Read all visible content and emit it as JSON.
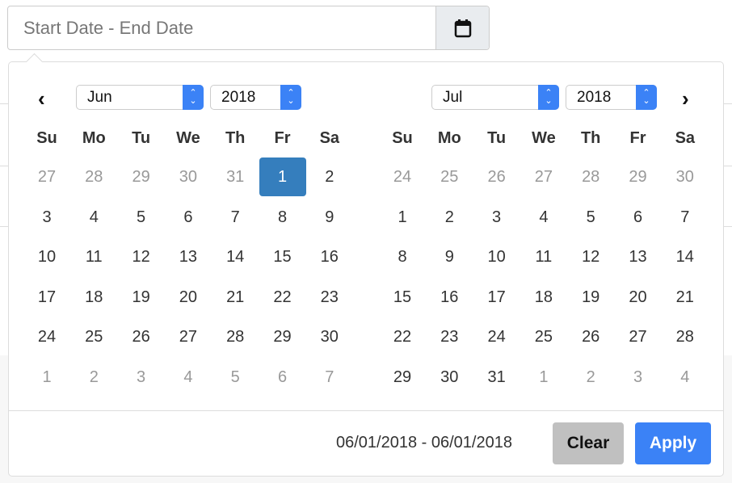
{
  "input": {
    "placeholder": "Start Date - End Date",
    "icon": "calendar-icon"
  },
  "weekdays": [
    "Su",
    "Mo",
    "Tu",
    "We",
    "Th",
    "Fr",
    "Sa"
  ],
  "left": {
    "month": "Jun",
    "year": "2018",
    "days": [
      [
        "27",
        "28",
        "29",
        "30",
        "31",
        "1",
        "2"
      ],
      [
        "3",
        "4",
        "5",
        "6",
        "7",
        "8",
        "9"
      ],
      [
        "10",
        "11",
        "12",
        "13",
        "14",
        "15",
        "16"
      ],
      [
        "17",
        "18",
        "19",
        "20",
        "21",
        "22",
        "23"
      ],
      [
        "24",
        "25",
        "26",
        "27",
        "28",
        "29",
        "30"
      ],
      [
        "1",
        "2",
        "3",
        "4",
        "5",
        "6",
        "7"
      ]
    ],
    "off": [
      [
        1,
        1,
        1,
        1,
        1,
        0,
        0
      ],
      [
        0,
        0,
        0,
        0,
        0,
        0,
        0
      ],
      [
        0,
        0,
        0,
        0,
        0,
        0,
        0
      ],
      [
        0,
        0,
        0,
        0,
        0,
        0,
        0
      ],
      [
        0,
        0,
        0,
        0,
        0,
        0,
        0
      ],
      [
        1,
        1,
        1,
        1,
        1,
        1,
        1
      ]
    ],
    "selected": "1"
  },
  "right": {
    "month": "Jul",
    "year": "2018",
    "days": [
      [
        "24",
        "25",
        "26",
        "27",
        "28",
        "29",
        "30"
      ],
      [
        "1",
        "2",
        "3",
        "4",
        "5",
        "6",
        "7"
      ],
      [
        "8",
        "9",
        "10",
        "11",
        "12",
        "13",
        "14"
      ],
      [
        "15",
        "16",
        "17",
        "18",
        "19",
        "20",
        "21"
      ],
      [
        "22",
        "23",
        "24",
        "25",
        "26",
        "27",
        "28"
      ],
      [
        "29",
        "30",
        "31",
        "1",
        "2",
        "3",
        "4"
      ]
    ],
    "off": [
      [
        1,
        1,
        1,
        1,
        1,
        1,
        1
      ],
      [
        0,
        0,
        0,
        0,
        0,
        0,
        0
      ],
      [
        0,
        0,
        0,
        0,
        0,
        0,
        0
      ],
      [
        0,
        0,
        0,
        0,
        0,
        0,
        0
      ],
      [
        0,
        0,
        0,
        0,
        0,
        0,
        0
      ],
      [
        0,
        0,
        0,
        1,
        1,
        1,
        1
      ]
    ]
  },
  "footer": {
    "range": "06/01/2018 - 06/01/2018",
    "clear": "Clear",
    "apply": "Apply"
  },
  "colors": {
    "accent": "#3b82f6",
    "selected": "#357ebd"
  }
}
